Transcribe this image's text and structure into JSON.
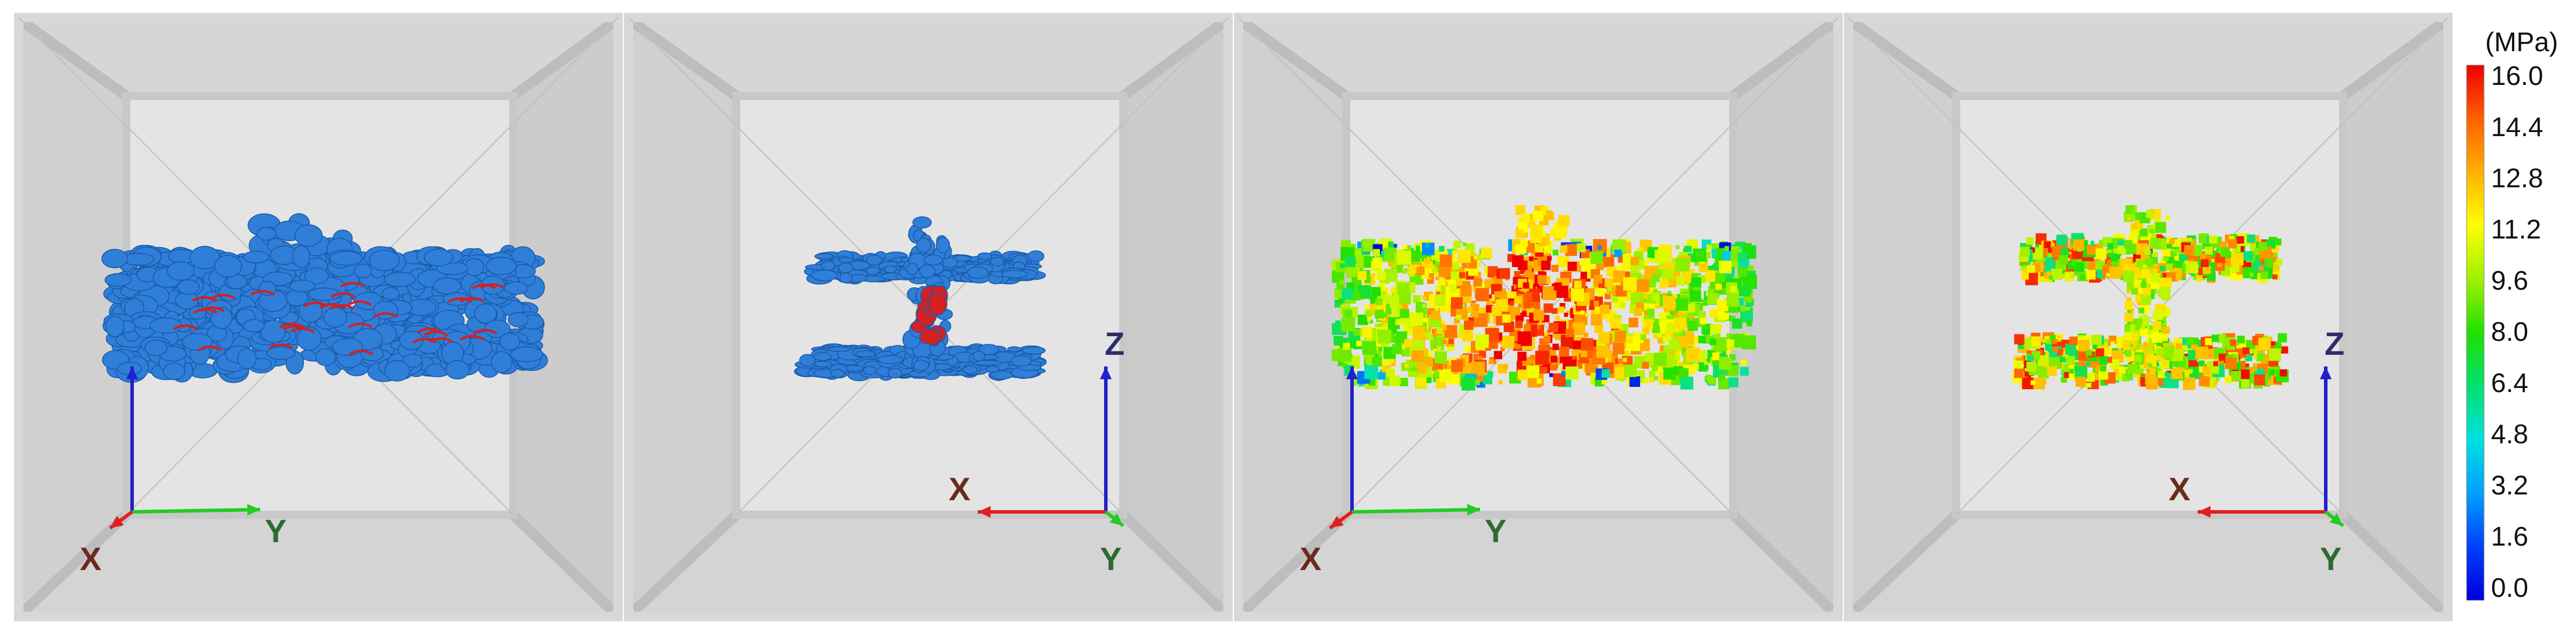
{
  "colorbar": {
    "unit": "(MPa)",
    "ticks": [
      "16.0",
      "14.4",
      "12.8",
      "11.2",
      "9.6",
      "8.0",
      "6.4",
      "4.8",
      "3.2",
      "1.6",
      "0.0"
    ],
    "colors": [
      "#0000d8",
      "#0040ff",
      "#00a0ff",
      "#00e0e0",
      "#00e070",
      "#20e000",
      "#a0f000",
      "#ffff00",
      "#ffb000",
      "#ff6000",
      "#ee0000"
    ]
  },
  "axes": {
    "x": "X",
    "y": "Y",
    "z": "Z",
    "colors": {
      "x": "#e02020",
      "y": "#22cc22",
      "z": "#2020cc",
      "label_x": "#6b2a1e",
      "label_y": "#2e6b2e",
      "label_z": "#2e2e6b"
    }
  },
  "panels": [
    {
      "view": "xy-oblique",
      "render": "geometry",
      "shape": "slab",
      "axis_triad": [
        "Z",
        "X",
        "Y"
      ]
    },
    {
      "view": "x-side",
      "render": "geometry",
      "shape": "split",
      "axis_triad": [
        "Z",
        "X",
        "Y"
      ]
    },
    {
      "view": "xy-oblique",
      "render": "stress",
      "shape": "slab",
      "axis_triad": [
        "Z",
        "X",
        "Y"
      ]
    },
    {
      "view": "x-side",
      "render": "stress",
      "shape": "split",
      "axis_triad": [
        "Z",
        "X",
        "Y"
      ]
    }
  ],
  "palette": {
    "box_face": "#dcdcdc",
    "box_inner": "#e4e4e4",
    "box_edge": "#c4c4c4",
    "geometry_blue": "#2f7ed8",
    "geometry_dark": "#1a5aa8",
    "geometry_red": "#d42020"
  }
}
